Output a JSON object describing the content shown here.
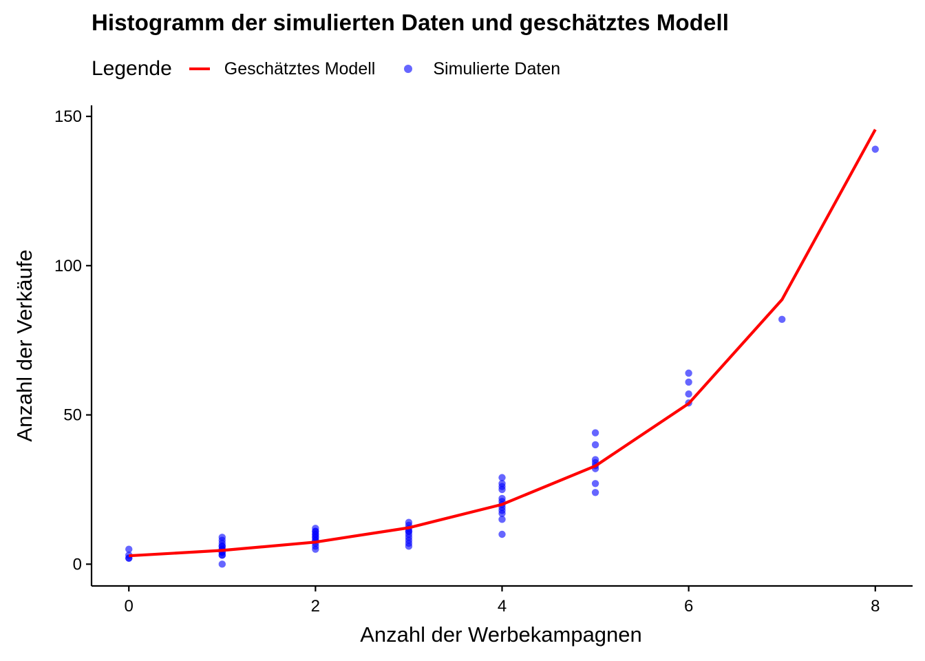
{
  "chart_data": {
    "type": "scatter",
    "title": "Histogramm der simulierten Daten und geschätztes Modell",
    "xlabel": "Anzahl der Werbekampagnen",
    "ylabel": "Anzahl der Verkäufe",
    "xlim": [
      -0.4,
      8.4
    ],
    "ylim": [
      -7.3,
      153.7
    ],
    "x_ticks": [
      0,
      2,
      4,
      6,
      8
    ],
    "y_ticks": [
      0,
      50,
      100,
      150
    ],
    "grid": false,
    "legend": {
      "title": "Legende",
      "position": "top-left",
      "entries": [
        {
          "label": "Geschätztes Modell",
          "kind": "line",
          "color": "#ff0000"
        },
        {
          "label": "Simulierte Daten",
          "kind": "point",
          "color": "#0000ff"
        }
      ]
    },
    "series": [
      {
        "name": "Simulierte Daten",
        "kind": "scatter",
        "color": "#0000ff",
        "points": [
          [
            0,
            5
          ],
          [
            0,
            3
          ],
          [
            0,
            2
          ],
          [
            0,
            2
          ],
          [
            1,
            9
          ],
          [
            1,
            8
          ],
          [
            1,
            7
          ],
          [
            1,
            6
          ],
          [
            1,
            6
          ],
          [
            1,
            5
          ],
          [
            1,
            5
          ],
          [
            1,
            4
          ],
          [
            1,
            4
          ],
          [
            1,
            3
          ],
          [
            1,
            3
          ],
          [
            1,
            0
          ],
          [
            2,
            12
          ],
          [
            2,
            11
          ],
          [
            2,
            11
          ],
          [
            2,
            10
          ],
          [
            2,
            10
          ],
          [
            2,
            9
          ],
          [
            2,
            9
          ],
          [
            2,
            8
          ],
          [
            2,
            8
          ],
          [
            2,
            7
          ],
          [
            2,
            6
          ],
          [
            2,
            5
          ],
          [
            3,
            14
          ],
          [
            3,
            13
          ],
          [
            3,
            12
          ],
          [
            3,
            11
          ],
          [
            3,
            11
          ],
          [
            3,
            10
          ],
          [
            3,
            9
          ],
          [
            3,
            8
          ],
          [
            3,
            7
          ],
          [
            3,
            6
          ],
          [
            4,
            29
          ],
          [
            4,
            27
          ],
          [
            4,
            26
          ],
          [
            4,
            25
          ],
          [
            4,
            22
          ],
          [
            4,
            21
          ],
          [
            4,
            20
          ],
          [
            4,
            19
          ],
          [
            4,
            18
          ],
          [
            4,
            17
          ],
          [
            4,
            15
          ],
          [
            4,
            10
          ],
          [
            5,
            44
          ],
          [
            5,
            40
          ],
          [
            5,
            35
          ],
          [
            5,
            34
          ],
          [
            5,
            33
          ],
          [
            5,
            32
          ],
          [
            5,
            27
          ],
          [
            5,
            24
          ],
          [
            6,
            64
          ],
          [
            6,
            61
          ],
          [
            6,
            57
          ],
          [
            6,
            54
          ],
          [
            7,
            82
          ],
          [
            8,
            139
          ]
        ]
      },
      {
        "name": "Geschätztes Modell",
        "kind": "line",
        "color": "#ff0000",
        "points": [
          [
            0,
            2.8
          ],
          [
            1,
            4.6
          ],
          [
            2,
            7.4
          ],
          [
            3,
            12.2
          ],
          [
            4,
            20.0
          ],
          [
            5,
            32.9
          ],
          [
            6,
            53.8
          ],
          [
            7,
            88.6
          ],
          [
            8,
            145.6
          ]
        ]
      }
    ]
  }
}
